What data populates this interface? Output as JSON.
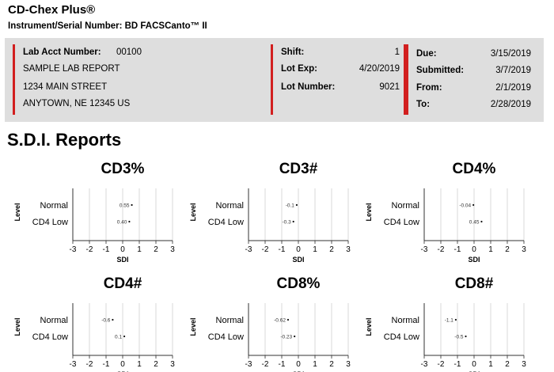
{
  "header": {
    "app_title": "CD-Chex Plus®",
    "instrument": "Instrument/Serial Number: BD FACSCanto™ II"
  },
  "info": {
    "lab_acct_label": "Lab Acct Number:",
    "lab_acct_value": "00100",
    "address": [
      "SAMPLE LAB REPORT",
      "1234 MAIN STREET",
      "ANYTOWN, NE 12345 US"
    ],
    "shift_label": "Shift:",
    "shift_value": "1",
    "lot_exp_label": "Lot Exp:",
    "lot_exp_value": "4/20/2019",
    "lot_number_label": "Lot Number:",
    "lot_number_value": "9021",
    "due_label": "Due:",
    "due_value": "3/15/2019",
    "submitted_label": "Submitted:",
    "submitted_value": "3/7/2019",
    "from_label": "From:",
    "from_value": "2/1/2019",
    "to_label": "To:",
    "to_value": "2/28/2019"
  },
  "section_title": "S.D.I. Reports",
  "colors": {
    "accent": "#d21f1f",
    "panel_bg": "#dedede",
    "grid": "#d8d8d8"
  },
  "chart_data": [
    {
      "type": "scatter",
      "title": "CD3%",
      "xlabel": "SDI",
      "ylabel": "Level",
      "xlim": [
        -3,
        3
      ],
      "xticks": [
        "-3",
        "-2",
        "-1",
        "0",
        "1",
        "2",
        "3"
      ],
      "categories": [
        "Normal",
        "CD4 Low"
      ],
      "points": [
        {
          "level": "Normal",
          "x": 0.55,
          "label": "0.55"
        },
        {
          "level": "CD4 Low",
          "x": 0.4,
          "label": "0.40"
        }
      ]
    },
    {
      "type": "scatter",
      "title": "CD3#",
      "xlabel": "SDI",
      "ylabel": "Level",
      "xlim": [
        -3,
        3
      ],
      "xticks": [
        "-3",
        "-2",
        "-1",
        "0",
        "1",
        "2",
        "3"
      ],
      "categories": [
        "Normal",
        "CD4 Low"
      ],
      "points": [
        {
          "level": "Normal",
          "x": -0.1,
          "label": "-0.1"
        },
        {
          "level": "CD4 Low",
          "x": -0.3,
          "label": "-0.3"
        }
      ]
    },
    {
      "type": "scatter",
      "title": "CD4%",
      "xlabel": "SDI",
      "ylabel": "Level",
      "xlim": [
        -3,
        3
      ],
      "xticks": [
        "-3",
        "-2",
        "-1",
        "0",
        "1",
        "2",
        "3"
      ],
      "categories": [
        "Normal",
        "CD4 Low"
      ],
      "points": [
        {
          "level": "Normal",
          "x": -0.04,
          "label": "-0.04"
        },
        {
          "level": "CD4 Low",
          "x": 0.45,
          "label": "0.45"
        }
      ]
    },
    {
      "type": "scatter",
      "title": "CD4#",
      "xlabel": "SDI",
      "ylabel": "Level",
      "xlim": [
        -3,
        3
      ],
      "xticks": [
        "-3",
        "-2",
        "-1",
        "0",
        "1",
        "2",
        "3"
      ],
      "categories": [
        "Normal",
        "CD4 Low"
      ],
      "points": [
        {
          "level": "Normal",
          "x": -0.6,
          "label": "-0.6"
        },
        {
          "level": "CD4 Low",
          "x": 0.1,
          "label": "0.1"
        }
      ]
    },
    {
      "type": "scatter",
      "title": "CD8%",
      "xlabel": "SDI",
      "ylabel": "Level",
      "xlim": [
        -3,
        3
      ],
      "xticks": [
        "-3",
        "-2",
        "-1",
        "0",
        "1",
        "2",
        "3"
      ],
      "categories": [
        "Normal",
        "CD4 Low"
      ],
      "points": [
        {
          "level": "Normal",
          "x": -0.62,
          "label": "-0.62"
        },
        {
          "level": "CD4 Low",
          "x": -0.23,
          "label": "-0.23"
        }
      ]
    },
    {
      "type": "scatter",
      "title": "CD8#",
      "xlabel": "SDI",
      "ylabel": "Level",
      "xlim": [
        -3,
        3
      ],
      "xticks": [
        "-3",
        "-2",
        "-1",
        "0",
        "1",
        "2",
        "3"
      ],
      "categories": [
        "Normal",
        "CD4 Low"
      ],
      "points": [
        {
          "level": "Normal",
          "x": -1.1,
          "label": "-1.1"
        },
        {
          "level": "CD4 Low",
          "x": -0.5,
          "label": "-0.5"
        }
      ]
    }
  ]
}
